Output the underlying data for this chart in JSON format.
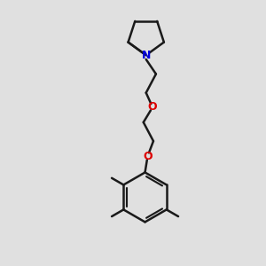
{
  "background_color": "#e0e0e0",
  "bond_color": "#1a1a1a",
  "nitrogen_color": "#0000dd",
  "oxygen_color": "#dd0000",
  "line_width": 1.8,
  "fig_width": 3.0,
  "fig_height": 3.0,
  "dpi": 100,
  "xlim": [
    0,
    10
  ],
  "ylim": [
    0,
    10
  ]
}
